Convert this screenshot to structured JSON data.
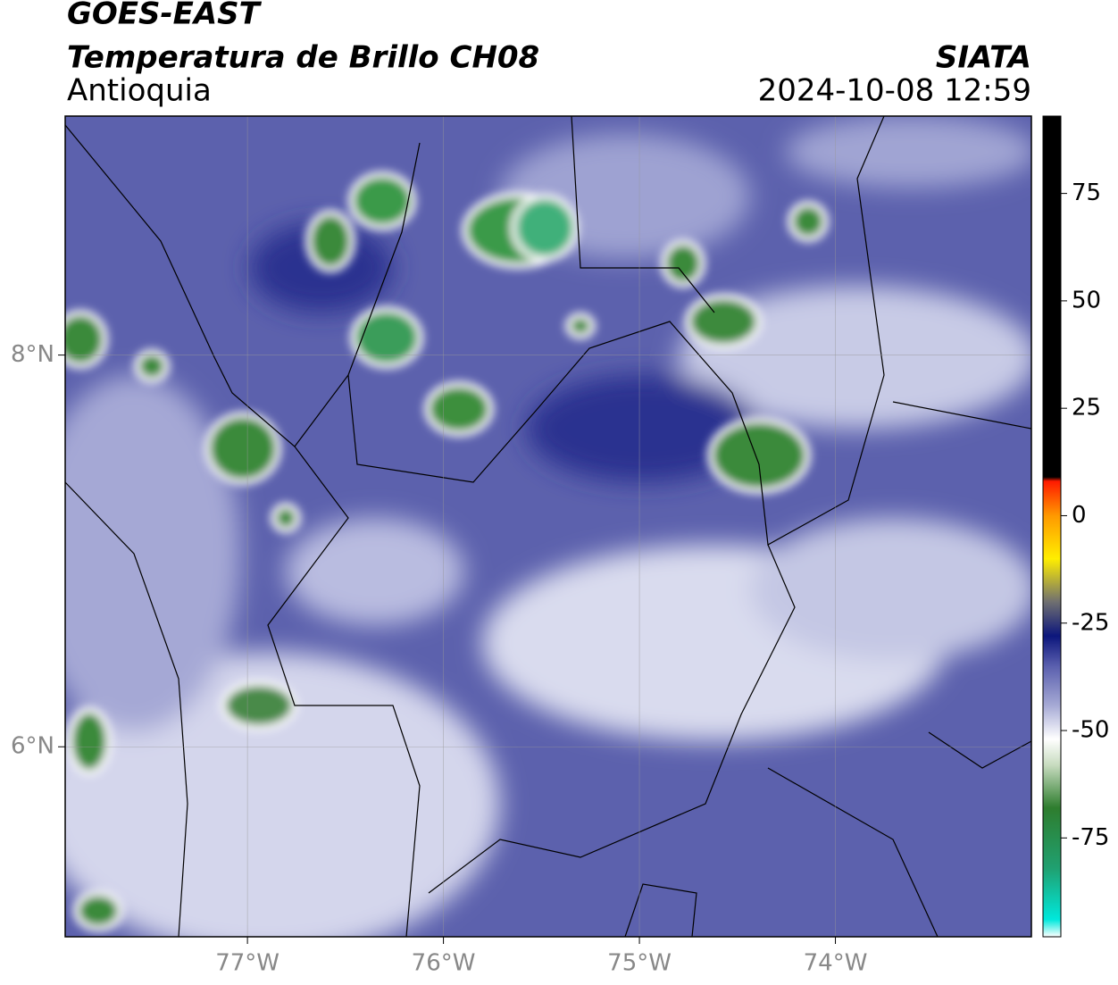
{
  "chart_data": {
    "type": "map",
    "title": "GOES-EAST",
    "subtitle": "Temperatura de Brillo CH08",
    "region": "Antioquia",
    "source": "SIATA",
    "datetime": "2024-10-08 12:59",
    "xlim": [
      -77.93,
      -73.0
    ],
    "ylim": [
      5.03,
      9.22
    ],
    "xticks": [
      {
        "value": -77,
        "label": "77°W"
      },
      {
        "value": -76,
        "label": "76°W"
      },
      {
        "value": -75,
        "label": "75°W"
      },
      {
        "value": -74,
        "label": "74°W"
      }
    ],
    "yticks": [
      {
        "value": 6,
        "label": "6°N"
      },
      {
        "value": 8,
        "label": "8°N"
      }
    ],
    "grid": true,
    "colorbar": {
      "clim": [
        -98,
        93
      ],
      "ticks": [
        75,
        50,
        25,
        0,
        -25,
        -50,
        -75
      ],
      "colormap": [
        {
          "value": -98,
          "color": "#ffffff"
        },
        {
          "value": -94,
          "color": "#00e8dc"
        },
        {
          "value": -82,
          "color": "#20a070"
        },
        {
          "value": -68,
          "color": "#2e7d2e"
        },
        {
          "value": -58,
          "color": "#c8dcc0"
        },
        {
          "value": -52,
          "color": "#ffffff"
        },
        {
          "value": -44,
          "color": "#a4a8d4"
        },
        {
          "value": -35,
          "color": "#5a5fae"
        },
        {
          "value": -28,
          "color": "#0c167c"
        },
        {
          "value": -20,
          "color": "#707070"
        },
        {
          "value": -10,
          "color": "#ffee00"
        },
        {
          "value": 0,
          "color": "#ff9900"
        },
        {
          "value": 8,
          "color": "#ff1a00"
        },
        {
          "value": 9,
          "color": "#000000"
        },
        {
          "value": 93,
          "color": "#000000"
        }
      ]
    }
  }
}
